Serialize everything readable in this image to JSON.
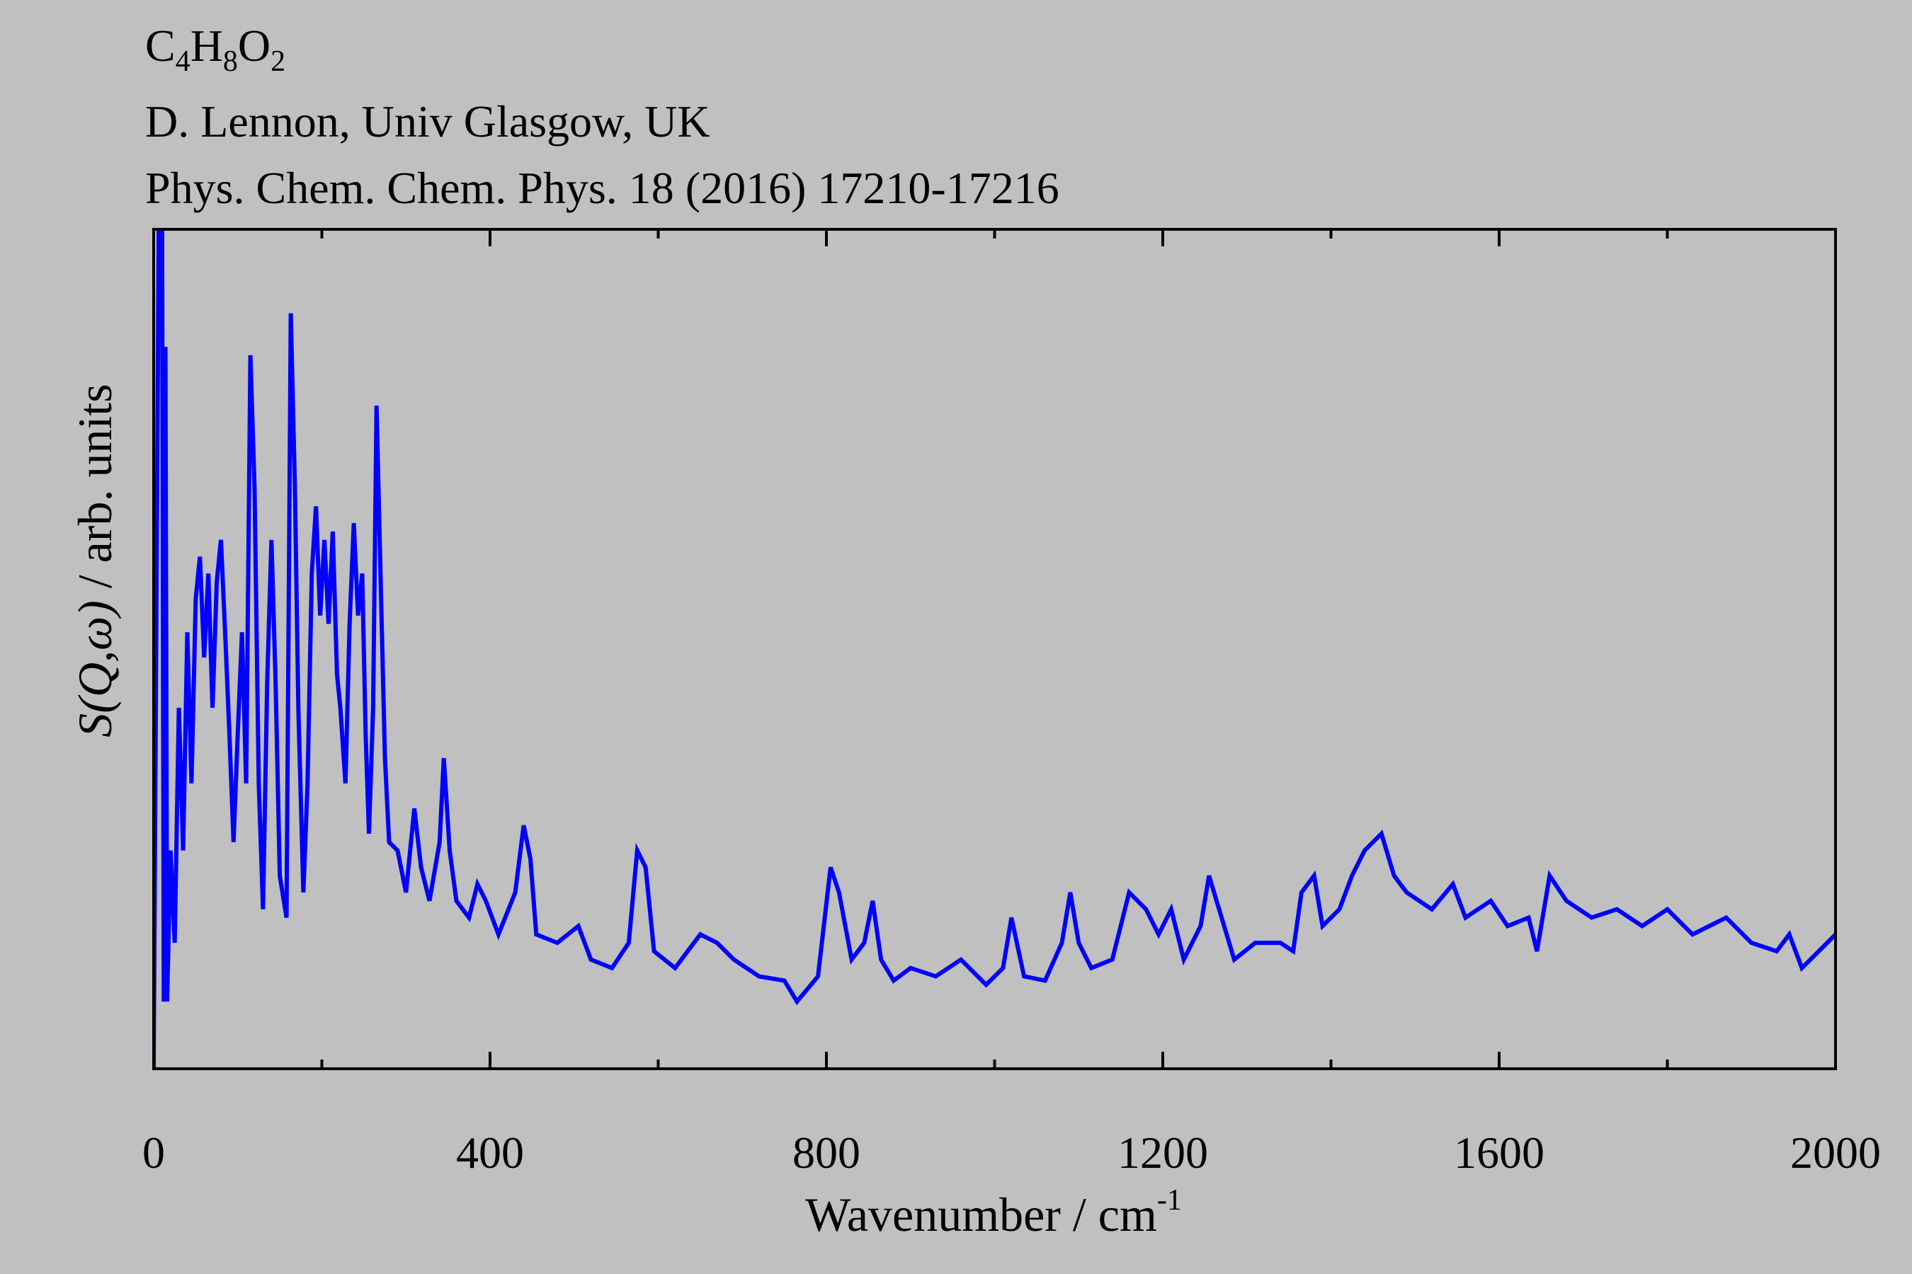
{
  "chart_data": {
    "type": "line",
    "title": "C4H8O2",
    "subtitles": [
      "D. Lennon, Univ Glasgow, UK",
      "Phys. Chem. Chem. Phys. 18 (2016) 17210-17216"
    ],
    "x_label": "Wavenumber / cm-1",
    "y_label": "S(Q,ω) / arb. units",
    "color": "#0000ff",
    "xlim": [
      0,
      2000
    ],
    "ylim": [
      0,
      100
    ],
    "xticks": [
      0,
      400,
      800,
      1200,
      1600,
      2000
    ],
    "x": [
      0,
      6,
      10,
      12,
      14,
      16,
      20,
      25,
      30,
      35,
      40,
      45,
      50,
      55,
      60,
      65,
      70,
      75,
      80,
      85,
      90,
      95,
      100,
      105,
      110,
      115,
      120,
      125,
      130,
      135,
      140,
      145,
      150,
      158,
      163,
      168,
      172,
      178,
      183,
      188,
      193,
      198,
      203,
      208,
      213,
      218,
      222,
      228,
      233,
      238,
      243,
      248,
      252,
      256,
      261,
      265,
      270,
      275,
      280,
      290,
      300,
      310,
      318,
      328,
      340,
      345,
      352,
      360,
      375,
      385,
      395,
      410,
      430,
      440,
      448,
      455,
      480,
      505,
      520,
      545,
      565,
      575,
      585,
      595,
      620,
      650,
      670,
      690,
      720,
      750,
      765,
      790,
      805,
      815,
      830,
      845,
      855,
      865,
      880,
      900,
      930,
      960,
      990,
      1010,
      1020,
      1035,
      1060,
      1080,
      1090,
      1100,
      1115,
      1140,
      1160,
      1180,
      1195,
      1210,
      1225,
      1245,
      1255,
      1270,
      1285,
      1310,
      1340,
      1355,
      1365,
      1380,
      1390,
      1410,
      1425,
      1440,
      1460,
      1475,
      1490,
      1520,
      1545,
      1560,
      1590,
      1610,
      1635,
      1645,
      1660,
      1680,
      1710,
      1740,
      1770,
      1800,
      1830,
      1870,
      1900,
      1930,
      1945,
      1960,
      1980,
      2000
    ],
    "values": [
      0,
      100,
      100,
      8,
      86,
      8,
      26,
      15,
      43,
      26,
      52,
      34,
      56,
      61,
      49,
      59,
      43,
      58,
      63,
      52,
      40,
      27,
      40,
      52,
      34,
      85,
      69,
      34,
      19,
      46,
      63,
      46,
      23,
      18,
      90,
      69,
      43,
      21,
      34,
      59,
      67,
      54,
      63,
      53,
      64,
      47,
      43,
      34,
      53,
      65,
      54,
      59,
      40,
      28,
      43,
      79,
      58,
      37,
      27,
      26,
      21,
      31,
      24,
      20,
      27,
      37,
      26,
      20,
      18,
      22,
      20,
      16,
      21,
      29,
      25,
      16,
      15,
      17,
      13,
      12,
      15,
      26,
      24,
      14,
      12,
      16,
      15,
      13,
      11,
      10.5,
      8,
      11,
      24,
      21,
      13,
      15,
      20,
      13,
      10.5,
      12,
      11,
      13,
      10,
      12,
      18,
      11,
      10.5,
      15,
      21,
      15,
      12,
      13,
      21,
      19,
      16,
      19,
      13,
      17,
      23,
      18,
      13,
      15,
      15,
      14,
      21,
      23,
      17,
      19,
      23,
      26,
      28,
      23,
      21,
      19,
      22,
      18,
      20,
      17,
      18,
      14,
      23,
      20,
      18,
      19,
      17,
      19,
      16,
      18,
      15,
      14,
      16,
      12,
      14,
      16
    ]
  }
}
